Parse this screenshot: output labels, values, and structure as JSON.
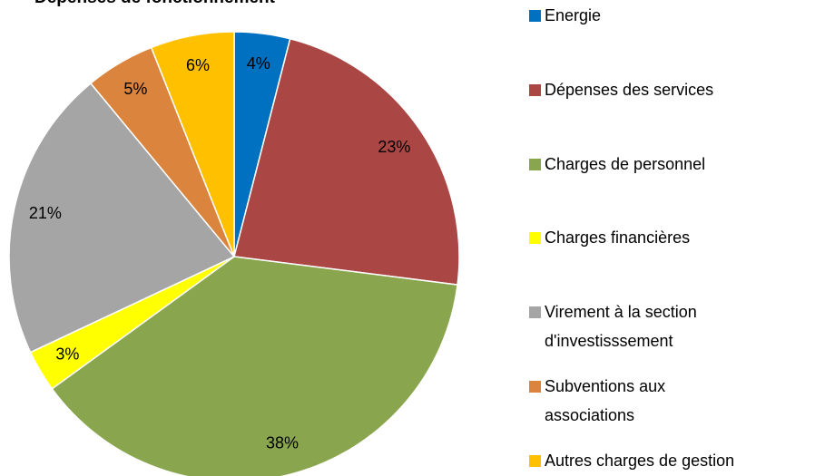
{
  "chart_data": {
    "type": "pie",
    "title": "Dépenses de fonctionnement",
    "categories": [
      "Energie",
      "Dépenses des services",
      "Charges de personnel",
      "Charges financières",
      "Virement à la section d'investisssement",
      "Subventions aux associations",
      "Autres charges de gestion"
    ],
    "values": [
      4,
      23,
      38,
      3,
      21,
      5,
      6
    ],
    "value_labels": [
      "4%",
      "23%",
      "38%",
      "3%",
      "21%",
      "5%",
      "6%"
    ],
    "colors": [
      "#0070c0",
      "#aa4643",
      "#89a54e",
      "#ffff00",
      "#a5a5a5",
      "#db843d",
      "#ffc000"
    ],
    "legend": "right"
  }
}
